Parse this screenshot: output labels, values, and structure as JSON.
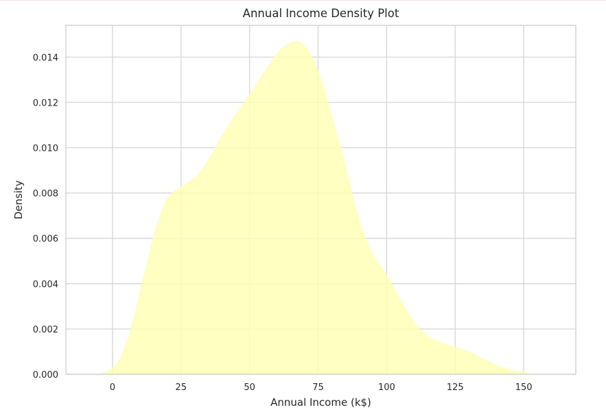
{
  "chart_data": {
    "type": "area",
    "title": "Annual Income Density Plot",
    "xlabel": "Annual Income (k$)",
    "ylabel": "Density",
    "xlim": [
      -17,
      169
    ],
    "ylim": [
      0,
      0.0154
    ],
    "x_ticks": [
      0,
      25,
      50,
      75,
      100,
      125,
      150
    ],
    "x_tick_labels": [
      "0",
      "25",
      "50",
      "75",
      "100",
      "125",
      "150"
    ],
    "y_ticks": [
      0,
      0.002,
      0.004,
      0.006,
      0.008,
      0.01,
      0.012,
      0.014
    ],
    "y_tick_labels": [
      "0.000",
      "0.002",
      "0.004",
      "0.006",
      "0.008",
      "0.010",
      "0.012",
      "0.014"
    ],
    "grid": true,
    "fill_color": "#ffffb3",
    "series": [
      {
        "x": [
          -7,
          -3,
          0,
          3,
          7,
          10,
          13,
          16,
          20,
          25,
          30,
          35,
          40,
          45,
          50,
          55,
          60,
          63,
          66,
          70,
          75,
          80,
          85,
          90,
          95,
          100,
          105,
          110,
          115,
          120,
          125,
          130,
          135,
          140,
          145,
          150,
          155
        ],
        "y": [
          0.0,
          0.0001,
          0.0003,
          0.0008,
          0.0022,
          0.0037,
          0.0052,
          0.0066,
          0.0078,
          0.0083,
          0.0087,
          0.0095,
          0.0106,
          0.0115,
          0.0124,
          0.0133,
          0.0142,
          0.0145,
          0.0147,
          0.0145,
          0.0134,
          0.0114,
          0.0092,
          0.0068,
          0.0053,
          0.0044,
          0.0033,
          0.0023,
          0.0017,
          0.0014,
          0.0012,
          0.001,
          0.0007,
          0.0004,
          0.0002,
          0.0001,
          0.0
        ]
      }
    ]
  }
}
